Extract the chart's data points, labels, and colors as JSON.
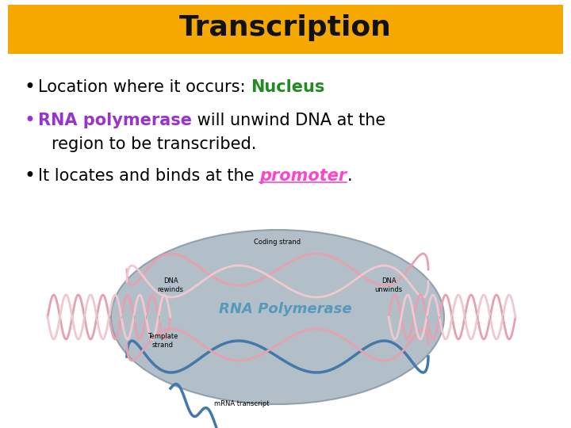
{
  "title": "Transcription",
  "title_bg_color": "#F5A800",
  "title_text_color": "#111111",
  "title_fontsize": 26,
  "bg_color": "#ffffff",
  "bullet1_plain": "Location where it occurs: ",
  "bullet1_colored": "Nucleus",
  "bullet1_colored_color": "#228B22",
  "bullet2_colored": "RNA polymerase",
  "bullet2_colored_color": "#9933cc",
  "bullet2_plain": " will unwind DNA at the",
  "bullet2_line2": "region to be transcribed.",
  "bullet3_plain_pre": "It locates and binds at the ",
  "bullet3_colored": "promoter",
  "bullet3_colored_color": "#ff44cc",
  "bullet3_plain_post": ".",
  "bullet_fontsize": 15,
  "diagram_caption": "RNA Polymerase",
  "diagram_caption_color": "#5599bb",
  "diagram_bg_color": "#aab8c2",
  "helix_pink": "#e8a0b0",
  "helix_blue": "#4477aa",
  "label_fontsize": 6
}
